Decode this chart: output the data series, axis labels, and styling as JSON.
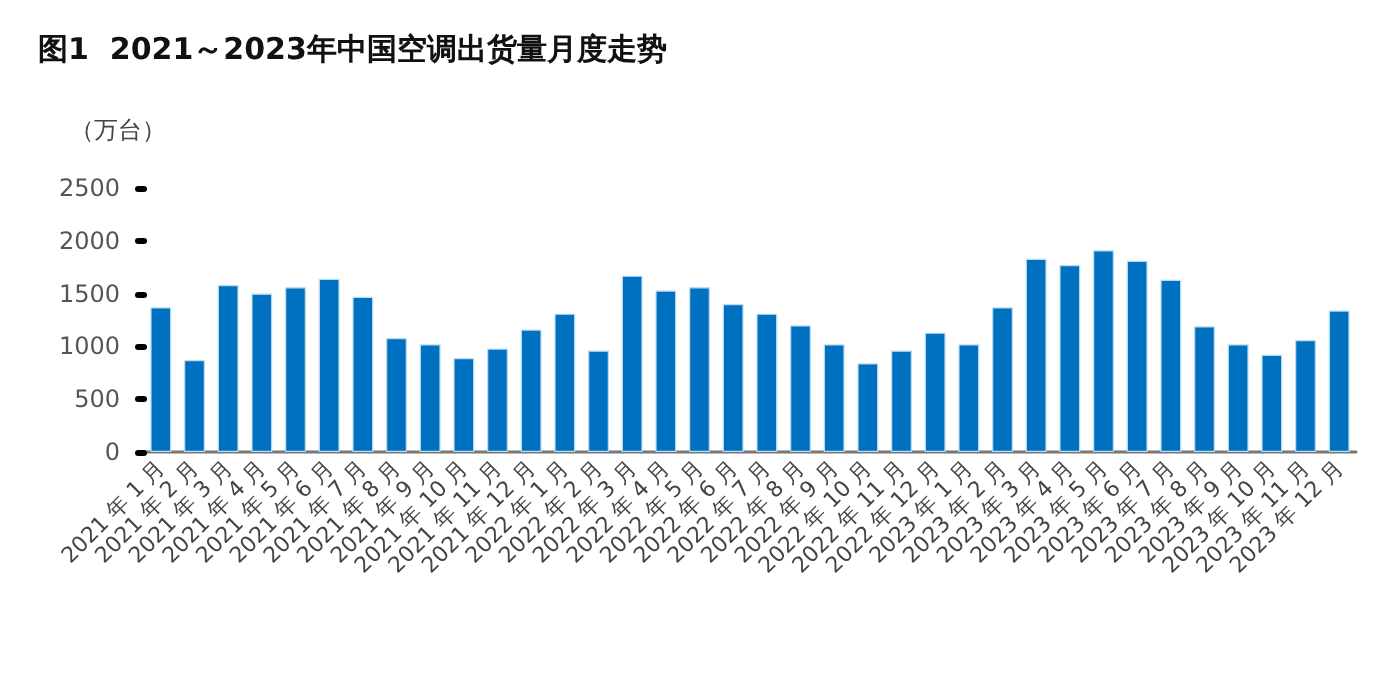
{
  "chart_data": {
    "type": "bar",
    "title": "图1  2021～2023年中国空调出货量月度走势",
    "ylabel": "（万台）",
    "categories": [
      "2021 年 1 月",
      "2021 年 2 月",
      "2021 年 3 月",
      "2021 年 4 月",
      "2021 年 5 月",
      "2021 年 6 月",
      "2021 年 7 月",
      "2021 年 8 月",
      "2021 年 9 月",
      "2021 年 10 月",
      "2021 年 11 月",
      "2021 年 12 月",
      "2022 年 1 月",
      "2022 年 2 月",
      "2022 年 3 月",
      "2022 年 4 月",
      "2022 年 5 月",
      "2022 年 6 月",
      "2022 年 7 月",
      "2022 年 8 月",
      "2022 年 9 月",
      "2022 年 10 月",
      "2022 年 11 月",
      "2022 年 12 月",
      "2023 年 1 月",
      "2023 年 2 月",
      "2023 年 3 月",
      "2023 年 4 月",
      "2023 年 5 月",
      "2023 年 6 月",
      "2023 年 7 月",
      "2023 年 8 月",
      "2023 年 9 月",
      "2023 年 10 月",
      "2023 年 11 月",
      "2023 年 12 月"
    ],
    "values": [
      1370,
      870,
      1580,
      1500,
      1560,
      1640,
      1470,
      1080,
      1020,
      890,
      980,
      1160,
      1310,
      960,
      1670,
      1530,
      1560,
      1400,
      1310,
      1200,
      1020,
      840,
      960,
      1130,
      1020,
      1370,
      1830,
      1770,
      1910,
      1810,
      1630,
      1190,
      1020,
      920,
      1060,
      1340
    ],
    "color": "#0070c0",
    "ylim": [
      0,
      2500
    ],
    "yticks": [
      0,
      500,
      1000,
      1500,
      2000,
      2500
    ]
  }
}
